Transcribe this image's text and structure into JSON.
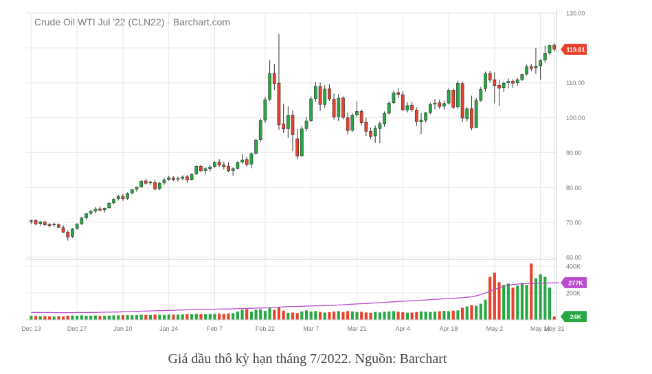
{
  "title": "Crude Oil WTI Jul '22 (CLN22) - Barchart.com",
  "caption": "Giá dầu thô kỳ hạn tháng 7/2022. Nguồn: Barchart",
  "colors": {
    "up": "#27a844",
    "down": "#e8412c",
    "avg": "#b94ccf",
    "grid": "#e6e6e6",
    "axis": "#888888",
    "text": "#777777",
    "avgBadge": "#b94ccf",
    "lastBadge": "#27a844",
    "priceBadge": "#e8412c"
  },
  "badges": {
    "price": "119.61",
    "avg_volume": "277K",
    "last_volume": "24K"
  },
  "price_axis": {
    "ylim": [
      60,
      130
    ],
    "ticks": [
      "130.00",
      "120.00",
      "110.00",
      "100.00",
      "90.00",
      "80.00",
      "70.00",
      "60.00"
    ]
  },
  "volume_axis": {
    "ylim": [
      0,
      440
    ],
    "ticks": [
      "400K",
      "200K"
    ]
  },
  "x_labels": [
    "Dec 13",
    "Dec 27",
    "Jan 10",
    "Jan 24",
    "Feb 7",
    "Feb 22",
    "Mar 7",
    "Mar 21",
    "Apr 4",
    "Apr 18",
    "May 2",
    "May 16",
    "May 31"
  ],
  "chart_data": {
    "type": "candlestick",
    "title": "Crude Oil WTI Jul '22 (CLN22) - Barchart.com",
    "ylim": [
      60,
      130
    ],
    "volume_ylim": [
      0,
      440
    ],
    "candles": [
      [
        70.3,
        70.8,
        69.5,
        70.5,
        30
      ],
      [
        70.6,
        70.9,
        69.2,
        69.6,
        28
      ],
      [
        69.7,
        70.4,
        69.1,
        70.2,
        26
      ],
      [
        70.1,
        70.6,
        68.9,
        69.3,
        27
      ],
      [
        69.4,
        69.8,
        68.6,
        69.1,
        25
      ],
      [
        69.3,
        69.9,
        68.7,
        69.5,
        24
      ],
      [
        69.4,
        69.7,
        68.4,
        68.6,
        26
      ],
      [
        68.5,
        69.2,
        67.0,
        67.2,
        24
      ],
      [
        67.2,
        67.8,
        64.8,
        65.8,
        30
      ],
      [
        66.0,
        68.4,
        65.6,
        68.1,
        32
      ],
      [
        68.3,
        69.8,
        67.9,
        69.5,
        30
      ],
      [
        69.6,
        71.6,
        69.3,
        71.3,
        34
      ],
      [
        71.3,
        72.8,
        70.8,
        72.5,
        30
      ],
      [
        72.6,
        73.6,
        72.2,
        73.2,
        31
      ],
      [
        73.2,
        74.4,
        72.6,
        73.8,
        33
      ],
      [
        73.9,
        74.6,
        73.2,
        73.5,
        29
      ],
      [
        73.6,
        74.3,
        72.8,
        74.1,
        30
      ],
      [
        74.2,
        75.8,
        74.0,
        75.5,
        32
      ],
      [
        75.6,
        76.9,
        75.2,
        76.6,
        33
      ],
      [
        76.8,
        77.9,
        76.3,
        77.4,
        34
      ],
      [
        77.5,
        78.1,
        76.2,
        76.8,
        35
      ],
      [
        76.9,
        78.6,
        76.5,
        78.3,
        36
      ],
      [
        78.4,
        79.6,
        78.1,
        79.4,
        35
      ],
      [
        79.5,
        80.3,
        78.8,
        80.1,
        36
      ],
      [
        80.2,
        82.2,
        79.9,
        81.8,
        38
      ],
      [
        81.9,
        82.5,
        80.9,
        81.2,
        37
      ],
      [
        81.3,
        82.0,
        80.7,
        81.6,
        36
      ],
      [
        81.5,
        82.3,
        79.1,
        79.6,
        39
      ],
      [
        79.7,
        81.6,
        79.2,
        81.2,
        38
      ],
      [
        81.3,
        82.7,
        80.8,
        82.2,
        37
      ],
      [
        82.3,
        83.4,
        81.9,
        82.8,
        39
      ],
      [
        82.8,
        83.2,
        81.8,
        82.3,
        38
      ],
      [
        82.4,
        83.1,
        81.7,
        82.6,
        39
      ],
      [
        82.6,
        83.5,
        82.1,
        83.0,
        40
      ],
      [
        83.1,
        83.6,
        81.3,
        82.2,
        42
      ],
      [
        82.3,
        84.1,
        82.0,
        83.8,
        41
      ],
      [
        83.9,
        86.3,
        83.6,
        86.1,
        44
      ],
      [
        86.1,
        86.6,
        84.4,
        84.8,
        43
      ],
      [
        84.9,
        85.8,
        83.6,
        85.4,
        42
      ],
      [
        85.4,
        86.4,
        84.6,
        85.9,
        44
      ],
      [
        86.0,
        87.5,
        85.7,
        87.2,
        45
      ],
      [
        87.3,
        88.1,
        85.9,
        86.4,
        46
      ],
      [
        86.5,
        87.4,
        85.2,
        86.0,
        44
      ],
      [
        86.1,
        87.2,
        84.4,
        84.8,
        47
      ],
      [
        84.9,
        85.8,
        83.4,
        85.4,
        49
      ],
      [
        85.5,
        87.5,
        85.2,
        87.2,
        62
      ],
      [
        87.3,
        89.6,
        86.8,
        87.9,
        75
      ],
      [
        88.0,
        88.7,
        85.9,
        86.6,
        80
      ],
      [
        86.7,
        90.2,
        85.5,
        89.7,
        60
      ],
      [
        89.8,
        94.0,
        89.4,
        93.6,
        75
      ],
      [
        93.7,
        99.8,
        93.1,
        99.2,
        78
      ],
      [
        99.3,
        106.0,
        98.5,
        105.2,
        66
      ],
      [
        105.3,
        116.5,
        104.8,
        112.7,
        90
      ],
      [
        112.7,
        115.4,
        108.0,
        109.8,
        74
      ],
      [
        109.9,
        124.0,
        96.5,
        98.0,
        95
      ],
      [
        98.2,
        104.0,
        95.6,
        96.8,
        68
      ],
      [
        96.9,
        103.3,
        94.2,
        100.6,
        52
      ],
      [
        100.7,
        102.1,
        90.4,
        95.1,
        54
      ],
      [
        94.0,
        96.8,
        88.0,
        89.0,
        50
      ],
      [
        89.1,
        97.7,
        88.9,
        96.8,
        62
      ],
      [
        96.9,
        100.2,
        96.1,
        99.1,
        70
      ],
      [
        99.2,
        106.1,
        98.8,
        105.4,
        62
      ],
      [
        105.5,
        110.2,
        104.6,
        109.0,
        65
      ],
      [
        109.0,
        110.1,
        102.0,
        103.8,
        58
      ],
      [
        103.8,
        109.4,
        102.8,
        108.2,
        54
      ],
      [
        108.3,
        109.6,
        104.8,
        105.4,
        57
      ],
      [
        105.3,
        106.9,
        99.4,
        100.2,
        61
      ],
      [
        100.3,
        106.8,
        99.1,
        105.6,
        64
      ],
      [
        105.7,
        106.1,
        99.6,
        100.1,
        58
      ],
      [
        100.0,
        101.6,
        95.1,
        96.3,
        65
      ],
      [
        96.4,
        101.3,
        95.9,
        100.7,
        62
      ],
      [
        100.8,
        104.7,
        100.0,
        101.8,
        58
      ],
      [
        101.8,
        102.4,
        97.8,
        98.6,
        60
      ],
      [
        98.7,
        100.0,
        94.8,
        96.1,
        55
      ],
      [
        96.1,
        97.2,
        93.9,
        94.6,
        52
      ],
      [
        94.8,
        97.8,
        92.8,
        96.9,
        58
      ],
      [
        96.9,
        98.9,
        92.7,
        98.3,
        55
      ],
      [
        98.2,
        101.8,
        97.4,
        101.2,
        60
      ],
      [
        101.3,
        104.8,
        100.9,
        104.2,
        62
      ],
      [
        104.3,
        107.8,
        103.9,
        107.1,
        64
      ],
      [
        107.2,
        108.5,
        105.7,
        106.7,
        60
      ],
      [
        106.6,
        107.7,
        101.9,
        102.3,
        56
      ],
      [
        102.2,
        104.4,
        101.5,
        103.5,
        53
      ],
      [
        103.6,
        104.6,
        101.7,
        102.3,
        54
      ],
      [
        102.2,
        103.0,
        97.7,
        98.9,
        58
      ],
      [
        98.8,
        101.3,
        95.4,
        99.3,
        62
      ],
      [
        99.3,
        101.7,
        98.6,
        101.4,
        60
      ],
      [
        101.5,
        104.3,
        101.0,
        103.8,
        58
      ],
      [
        103.9,
        105.4,
        102.4,
        104.2,
        61
      ],
      [
        104.3,
        105.2,
        102.5,
        103.2,
        63
      ],
      [
        103.3,
        104.9,
        102.3,
        104.1,
        66
      ],
      [
        104.2,
        108.5,
        103.8,
        107.9,
        64
      ],
      [
        107.9,
        108.5,
        102.4,
        103.0,
        68
      ],
      [
        103.1,
        110.6,
        102.5,
        109.9,
        70
      ],
      [
        109.8,
        110.4,
        98.7,
        99.9,
        90
      ],
      [
        99.8,
        103.1,
        98.9,
        102.5,
        100
      ],
      [
        102.6,
        106.3,
        96.4,
        97.1,
        110
      ],
      [
        97.2,
        105.7,
        97.0,
        104.9,
        104
      ],
      [
        105.0,
        108.8,
        104.6,
        108.1,
        120
      ],
      [
        108.3,
        113.2,
        107.5,
        112.6,
        150
      ],
      [
        112.7,
        113.4,
        110.1,
        110.8,
        320
      ],
      [
        110.9,
        113.0,
        104.1,
        109.2,
        350
      ],
      [
        109.3,
        110.9,
        103.4,
        108.5,
        280
      ],
      [
        108.6,
        110.4,
        107.4,
        109.9,
        260
      ],
      [
        110.0,
        111.3,
        108.4,
        110.4,
        270
      ],
      [
        110.5,
        111.0,
        108.6,
        109.9,
        240
      ],
      [
        110.0,
        111.4,
        109.1,
        110.9,
        255
      ],
      [
        110.9,
        112.6,
        110.6,
        112.4,
        275
      ],
      [
        112.5,
        115.2,
        112.1,
        114.6,
        260
      ],
      [
        114.7,
        115.4,
        113.3,
        114.1,
        420
      ],
      [
        114.3,
        120.0,
        112.6,
        114.8,
        310
      ],
      [
        114.9,
        116.8,
        110.9,
        116.4,
        340
      ],
      [
        116.5,
        120.6,
        115.8,
        118.5,
        320
      ],
      [
        118.6,
        121.0,
        118.1,
        120.7,
        240
      ],
      [
        120.8,
        121.4,
        119.0,
        119.6,
        24
      ]
    ],
    "volume_avg": [
      55,
      55,
      54,
      54,
      54,
      53,
      53,
      53,
      53,
      53,
      54,
      54,
      54,
      55,
      55,
      56,
      57,
      57,
      58,
      58,
      60,
      61,
      62,
      63,
      64,
      65,
      66,
      67,
      68,
      69,
      70,
      71,
      72,
      73,
      74,
      75,
      76,
      77,
      78,
      78,
      79,
      80,
      81,
      81,
      82,
      83,
      84,
      85,
      86,
      87,
      88,
      89,
      90,
      92,
      94,
      96,
      98,
      99,
      100,
      101,
      102,
      103,
      104,
      105,
      106,
      107,
      108,
      110,
      112,
      114,
      116,
      118,
      120,
      122,
      124,
      126,
      128,
      130,
      132,
      134,
      136,
      138,
      140,
      142,
      144,
      146,
      148,
      150,
      152,
      154,
      156,
      158,
      160,
      162,
      164,
      168,
      172,
      178,
      188,
      200,
      212,
      225,
      238,
      250,
      258,
      262,
      266,
      268,
      270,
      272,
      272,
      273,
      274,
      275,
      276,
      277
    ]
  }
}
